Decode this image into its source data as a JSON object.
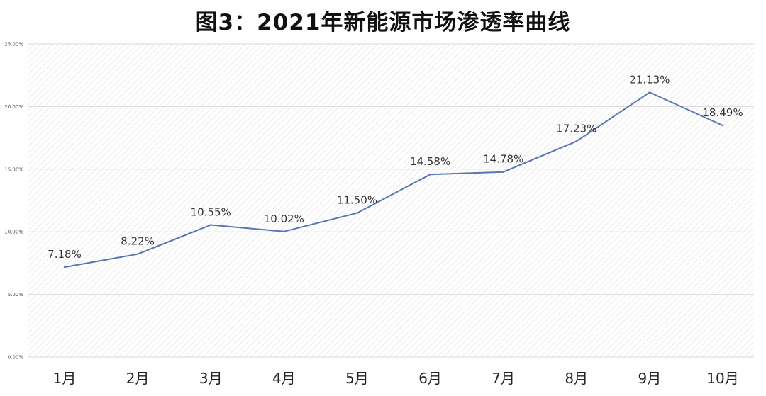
{
  "title": "图3：2021年新能源市场渗透率曲线",
  "chart_data": {
    "type": "line",
    "title": "图3：2021年新能源市场渗透率曲线",
    "categories": [
      "1月",
      "2月",
      "3月",
      "4月",
      "5月",
      "6月",
      "7月",
      "8月",
      "9月",
      "10月"
    ],
    "series": [
      {
        "values": [
          7.18,
          8.22,
          10.55,
          10.02,
          11.5,
          14.58,
          14.78,
          17.23,
          21.13,
          18.49
        ],
        "data_labels": [
          "7.18%",
          "8.22%",
          "10.55%",
          "10.02%",
          "11.50%",
          "14.58%",
          "14.78%",
          "17.23%",
          "21.13%",
          "18.49%"
        ]
      }
    ],
    "y_ticks": [
      0,
      5,
      10,
      15,
      20,
      25
    ],
    "y_tick_labels": [
      "0.00%",
      "5.00%",
      "10.00%",
      "15.00%",
      "20.00%",
      "25.00%"
    ],
    "ylim": [
      0,
      25
    ],
    "xlabel": "",
    "ylabel": "",
    "grid": true,
    "legend": "none",
    "colors": {
      "line": "#5677b1",
      "grid": "#d9d9d9",
      "plot_background_hatch": "#ececec"
    }
  }
}
